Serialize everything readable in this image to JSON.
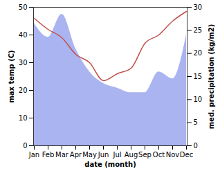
{
  "chart_data": {
    "type": "line",
    "xlabel": "date (month)",
    "ylabel": "max temp (C)",
    "y2label": "med. precipitation (kg/m2)",
    "categories": [
      "Jan",
      "Feb",
      "Mar",
      "Apr",
      "May",
      "Jun",
      "Jul",
      "Aug",
      "Sep",
      "Oct",
      "Nov",
      "Dec"
    ],
    "series": [
      {
        "name": "med. precipitation (kg/m2)",
        "type": "area",
        "axis": "y2",
        "color": "#aab4f0",
        "values": [
          26.5,
          23.5,
          28.5,
          21,
          16,
          13.5,
          12.5,
          11.5,
          11.5,
          16,
          14.5,
          24
        ]
      },
      {
        "name": "max temp (C)",
        "type": "line",
        "color": "#c0504d",
        "values": [
          46,
          42,
          39,
          33,
          30,
          23.5,
          26,
          28,
          37,
          40,
          45,
          48.5
        ]
      }
    ],
    "ylim": [
      0,
      50
    ],
    "yticks": [
      0,
      10,
      20,
      30,
      40,
      50
    ],
    "y2lim": [
      0,
      30
    ],
    "y2ticks": [
      0,
      5,
      10,
      15,
      20,
      25,
      30
    ]
  }
}
